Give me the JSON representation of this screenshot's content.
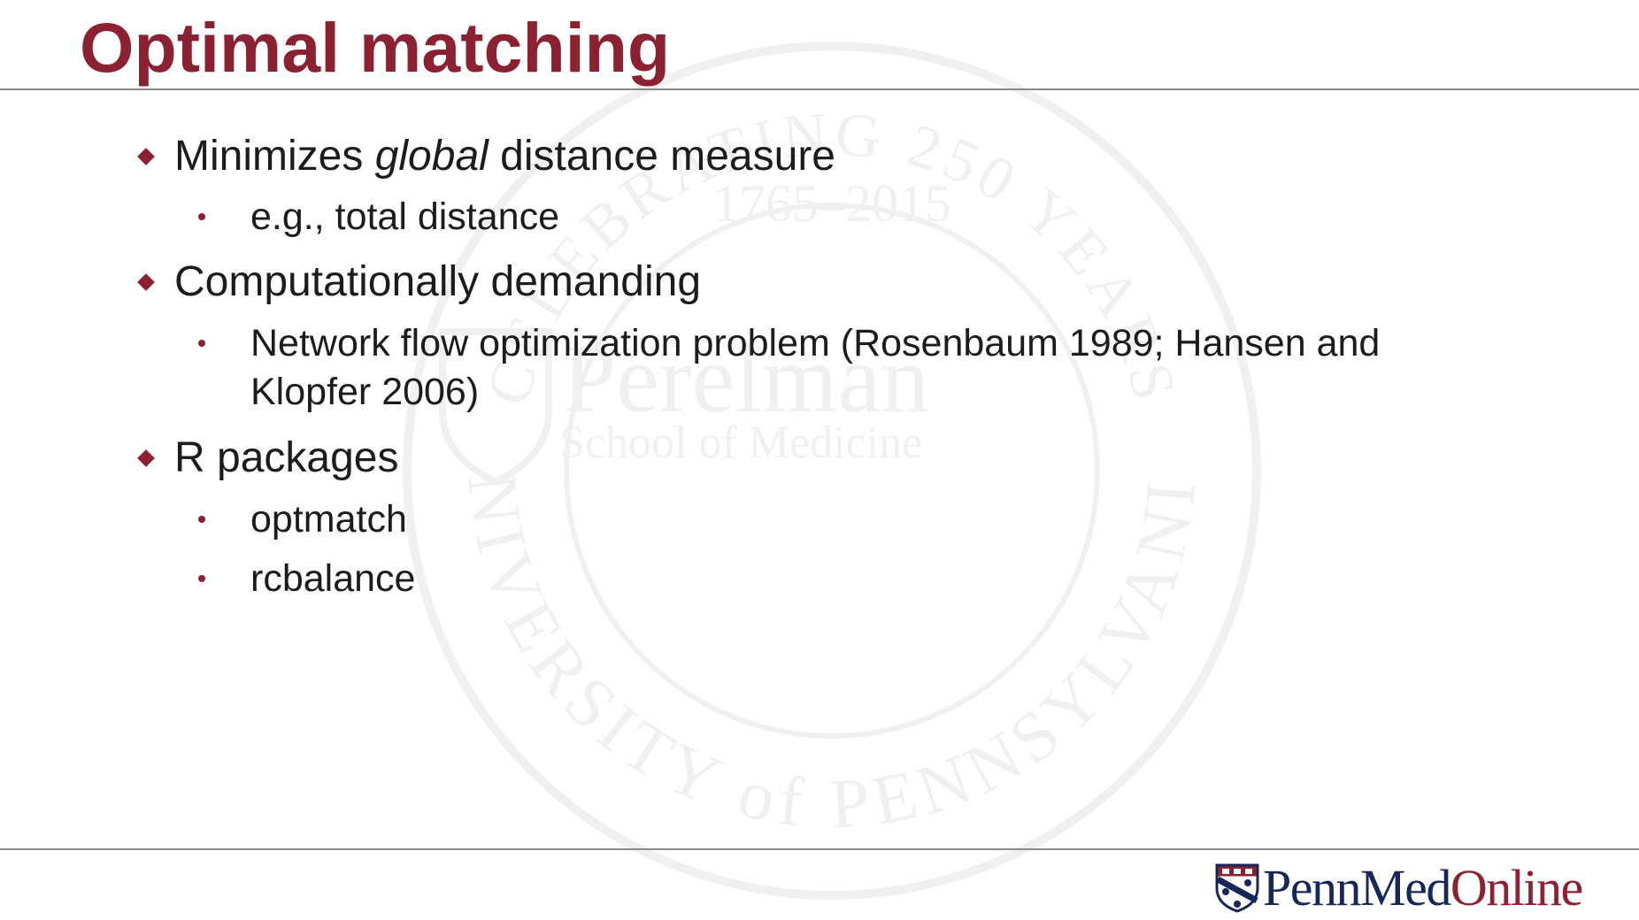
{
  "slide": {
    "title": "Optimal matching",
    "bullets": [
      {
        "level": 1,
        "text_before": "Minimizes ",
        "text_italic": "global",
        "text_after": " distance measure"
      },
      {
        "level": 2,
        "text": "e.g., total distance"
      },
      {
        "level": 1,
        "text": "Computationally demanding"
      },
      {
        "level": 2,
        "line1": "Network flow optimization problem (Rosenbaum 1989; Hansen and",
        "line2": "Klopfer 2006)"
      },
      {
        "level": 1,
        "text": "R packages"
      },
      {
        "level": 2,
        "text": "optmatch"
      },
      {
        "level": 2,
        "text": "rcbalance"
      }
    ]
  },
  "watermark": {
    "arc_text": "CELEBRATING 250 YEARS",
    "years": "1765–2015",
    "name": "Perelman",
    "school": "School of Medicine",
    "ring_text": "UNIVERSITY of PENNSYLVANIA"
  },
  "logo": {
    "part1": "Penn",
    "part2": "Med",
    "part3": "Online"
  },
  "colors": {
    "accent": "#8c2131",
    "navy": "#16285a",
    "text": "#1c1c1c",
    "rule": "#8a8a8a"
  },
  "icons": {
    "level1_marker": "diamond-bullet-icon",
    "level2_marker": "dot-bullet-icon",
    "logo_mark": "penn-shield-icon"
  }
}
